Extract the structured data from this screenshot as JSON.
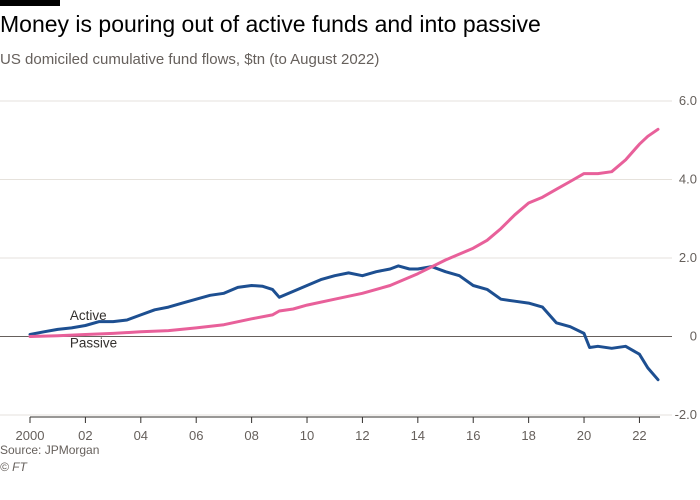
{
  "title": "Money is pouring out of active funds and into passive",
  "subtitle": "US domiciled cumulative fund flows, $tn (to August 2022)",
  "source": "Source: JPMorgan",
  "credit": "© FT",
  "colors": {
    "active": "#1d4f91",
    "passive": "#e8609a",
    "grid": "#e6e2dc",
    "zero": "#66605c",
    "axis": "#33302e"
  },
  "chart_data": {
    "type": "line",
    "title": "Money is pouring out of active funds and into passive",
    "subtitle": "US domiciled cumulative fund flows, $tn (to August 2022)",
    "xlabel": "",
    "ylabel": "$tn",
    "xlim": [
      2000,
      2022.67
    ],
    "ylim": [
      -2.0,
      6.0
    ],
    "x_ticks": [
      2000,
      2002,
      2004,
      2006,
      2008,
      2010,
      2012,
      2014,
      2016,
      2018,
      2020,
      2022
    ],
    "x_tick_labels": [
      "2000",
      "02",
      "04",
      "06",
      "08",
      "10",
      "12",
      "14",
      "16",
      "18",
      "20",
      "22"
    ],
    "y_ticks": [
      -2.0,
      0,
      2.0,
      4.0,
      6.0
    ],
    "y_tick_labels": [
      "-2.0",
      "0",
      "2.0",
      "4.0",
      "6.0"
    ],
    "grid": true,
    "series": [
      {
        "name": "Active",
        "color_key": "active",
        "points": [
          [
            2000.0,
            0.05
          ],
          [
            2000.5,
            0.12
          ],
          [
            2001.0,
            0.18
          ],
          [
            2001.5,
            0.22
          ],
          [
            2002.0,
            0.28
          ],
          [
            2002.5,
            0.38
          ],
          [
            2003.0,
            0.38
          ],
          [
            2003.5,
            0.42
          ],
          [
            2004.0,
            0.55
          ],
          [
            2004.5,
            0.68
          ],
          [
            2005.0,
            0.75
          ],
          [
            2005.5,
            0.85
          ],
          [
            2006.0,
            0.95
          ],
          [
            2006.5,
            1.05
          ],
          [
            2007.0,
            1.1
          ],
          [
            2007.5,
            1.25
          ],
          [
            2008.0,
            1.3
          ],
          [
            2008.4,
            1.28
          ],
          [
            2008.75,
            1.2
          ],
          [
            2009.0,
            1.0
          ],
          [
            2009.5,
            1.15
          ],
          [
            2010.0,
            1.3
          ],
          [
            2010.5,
            1.45
          ],
          [
            2011.0,
            1.55
          ],
          [
            2011.5,
            1.62
          ],
          [
            2012.0,
            1.55
          ],
          [
            2012.5,
            1.65
          ],
          [
            2013.0,
            1.72
          ],
          [
            2013.3,
            1.8
          ],
          [
            2013.7,
            1.72
          ],
          [
            2014.0,
            1.72
          ],
          [
            2014.5,
            1.78
          ],
          [
            2015.0,
            1.65
          ],
          [
            2015.5,
            1.55
          ],
          [
            2016.0,
            1.3
          ],
          [
            2016.5,
            1.2
          ],
          [
            2017.0,
            0.95
          ],
          [
            2017.5,
            0.9
          ],
          [
            2018.0,
            0.85
          ],
          [
            2018.5,
            0.75
          ],
          [
            2019.0,
            0.35
          ],
          [
            2019.5,
            0.25
          ],
          [
            2020.0,
            0.08
          ],
          [
            2020.2,
            -0.28
          ],
          [
            2020.5,
            -0.25
          ],
          [
            2021.0,
            -0.3
          ],
          [
            2021.5,
            -0.25
          ],
          [
            2022.0,
            -0.45
          ],
          [
            2022.3,
            -0.8
          ],
          [
            2022.67,
            -1.1
          ]
        ]
      },
      {
        "name": "Passive",
        "color_key": "passive",
        "points": [
          [
            2000.0,
            0.0
          ],
          [
            2001.0,
            0.02
          ],
          [
            2002.0,
            0.05
          ],
          [
            2003.0,
            0.08
          ],
          [
            2004.0,
            0.12
          ],
          [
            2005.0,
            0.15
          ],
          [
            2006.0,
            0.22
          ],
          [
            2007.0,
            0.3
          ],
          [
            2008.0,
            0.45
          ],
          [
            2008.75,
            0.55
          ],
          [
            2009.0,
            0.65
          ],
          [
            2009.5,
            0.7
          ],
          [
            2010.0,
            0.8
          ],
          [
            2011.0,
            0.95
          ],
          [
            2012.0,
            1.1
          ],
          [
            2013.0,
            1.3
          ],
          [
            2014.0,
            1.6
          ],
          [
            2015.0,
            1.95
          ],
          [
            2016.0,
            2.25
          ],
          [
            2016.5,
            2.45
          ],
          [
            2017.0,
            2.75
          ],
          [
            2017.5,
            3.1
          ],
          [
            2018.0,
            3.4
          ],
          [
            2018.5,
            3.55
          ],
          [
            2019.0,
            3.75
          ],
          [
            2019.5,
            3.95
          ],
          [
            2020.0,
            4.15
          ],
          [
            2020.5,
            4.15
          ],
          [
            2021.0,
            4.2
          ],
          [
            2021.5,
            4.5
          ],
          [
            2022.0,
            4.9
          ],
          [
            2022.3,
            5.1
          ],
          [
            2022.67,
            5.28
          ]
        ]
      }
    ],
    "annotations": [
      {
        "text": "Active",
        "series": "Active",
        "x": 2000.5,
        "y": 0.42
      },
      {
        "text": "Passive",
        "series": "Passive",
        "x": 2000.5,
        "y": -0.28
      }
    ]
  }
}
